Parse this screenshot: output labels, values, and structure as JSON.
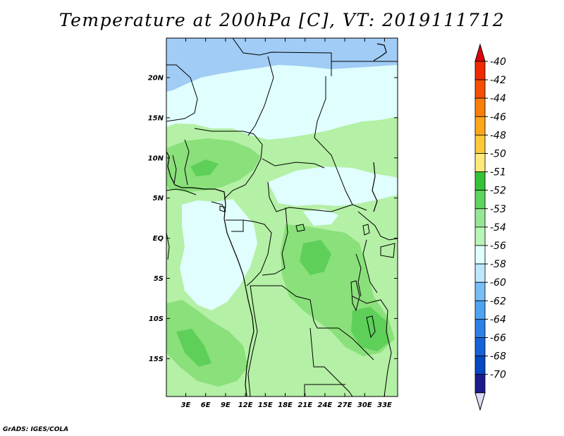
{
  "title": "Temperature at 200hPa [C], VT: 2019111712",
  "credit": "GrADS: IGES/COLA",
  "map": {
    "lat_labels": [
      "20N",
      "15N",
      "10N",
      "5N",
      "EQ",
      "5S",
      "10S",
      "15S"
    ],
    "lon_labels": [
      "3E",
      "6E",
      "9E",
      "12E",
      "15E",
      "18E",
      "21E",
      "24E",
      "27E",
      "30E",
      "33E"
    ],
    "fill_colors": {
      "light_blue": "#a0ccf5",
      "pale_cyan": "#e0fefe",
      "pale_green": "#b4f0a5",
      "green": "#8ae07a",
      "mid_green": "#5ed05a"
    }
  },
  "colorbar": {
    "labels": [
      "-40",
      "-42",
      "-44",
      "-46",
      "-48",
      "-50",
      "-51",
      "-52",
      "-53",
      "-54",
      "-56",
      "-58",
      "-60",
      "-62",
      "-64",
      "-66",
      "-68",
      "-70"
    ],
    "colors": [
      "#f02a00",
      "#f54f05",
      "#f97f0a",
      "#fca71a",
      "#fdc83a",
      "#feea7a",
      "#36c236",
      "#5fd45f",
      "#96e696",
      "#b8f5b8",
      "#e0ffff",
      "#bee7fb",
      "#78bef6",
      "#4ea4f1",
      "#2e7fe8",
      "#1663d9",
      "#0448c2",
      "#1b1b8c"
    ],
    "top_arrow_color": "#e0000e",
    "bottom_arrow_color": "#dcdcf8"
  }
}
